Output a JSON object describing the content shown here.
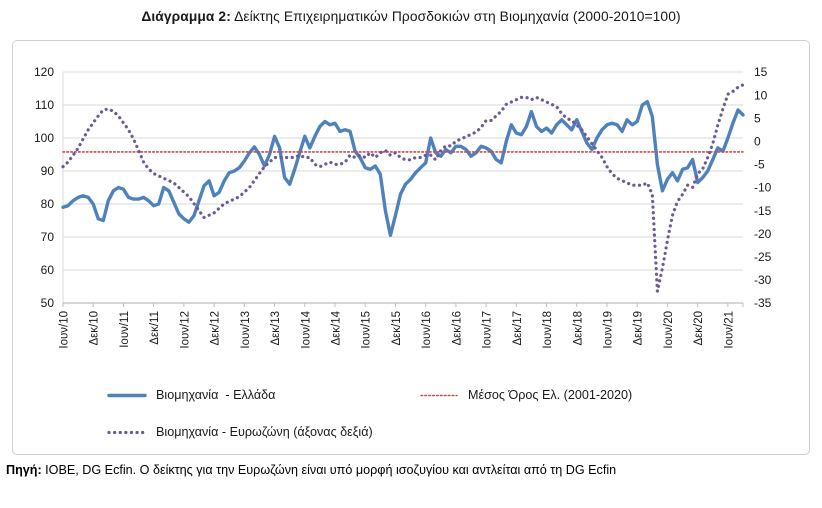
{
  "title": {
    "prefix": "Διάγραμμα 2:",
    "text": " Δείκτης Επιχειρηματικών Προσδοκιών στη Βιομηχανία (2000-2010=100)"
  },
  "source_note": {
    "prefix": "Πηγή:",
    "text": " ΙΟΒΕ, DG Ecfin. Ο δείκτης για την Ευρωζώνη είναι υπό μορφή ισοζυγίου και αντλείται από τη DG Ecfin"
  },
  "chart_data": {
    "type": "line",
    "title": "Δείκτης Επιχειρηματικών Προσδοκιών στη Βιομηχανία (2000-2010=100)",
    "grid": "horizontal",
    "legend_position": "bottom",
    "x_tick_labels": [
      "Ιουν/10",
      "Δεκ/10",
      "Ιουν/11",
      "Δεκ/11",
      "Ιουν/12",
      "Δεκ/12",
      "Ιουν/13",
      "Δεκ/13",
      "Ιουν/14",
      "Δεκ/14",
      "Ιουν/15",
      "Δεκ/15",
      "Ιουν/16",
      "Δεκ/16",
      "Ιουν/17",
      "Δεκ/17",
      "Ιουν/18",
      "Δεκ/18",
      "Ιουν/19",
      "Δεκ/19",
      "Ιουν/20",
      "Δεκ/20",
      "Ιουν/21"
    ],
    "x_tick_every": 6,
    "left_axis": {
      "min": 50,
      "max": 120,
      "step": 10,
      "tick_labels": [
        "120",
        "110",
        "100",
        "90",
        "80",
        "70",
        "60",
        "50"
      ]
    },
    "right_axis": {
      "min": -35,
      "max": 15,
      "step": 5,
      "tick_labels": [
        "15",
        "10",
        "5",
        "0",
        "-5",
        "-10",
        "-15",
        "-20",
        "-25",
        "-30",
        "-35"
      ]
    },
    "series": [
      {
        "name": "Βιομηχανία  - Ελλάδα",
        "axis": "left",
        "style": "solid",
        "color": "#4f81bd",
        "values": [
          79,
          79.5,
          81,
          82,
          82.5,
          82,
          80,
          75.5,
          75,
          81,
          84,
          85,
          84.5,
          82,
          81.5,
          81.5,
          82,
          81,
          79.5,
          80,
          85,
          84,
          80.5,
          77,
          75.5,
          74.5,
          76.5,
          81,
          85.5,
          87,
          82.5,
          83.5,
          87,
          89.5,
          90,
          91,
          93,
          95.5,
          97.3,
          95,
          91.5,
          95,
          100.5,
          97,
          88,
          86,
          90.5,
          95.5,
          100.5,
          97,
          100.5,
          103.5,
          105,
          104,
          104.5,
          102,
          102.5,
          102,
          96,
          94,
          91,
          90.5,
          91.5,
          89,
          78,
          70.5,
          76.5,
          83,
          86,
          87.5,
          89.5,
          91,
          92.5,
          100,
          95.5,
          94.5,
          96.5,
          95.5,
          97.5,
          97.5,
          96.5,
          94.5,
          95.5,
          97.5,
          97,
          96,
          93.5,
          92.5,
          99,
          104,
          101.5,
          101,
          103.5,
          108,
          103.5,
          102,
          103,
          101.5,
          104,
          105.5,
          104,
          102.5,
          105.5,
          102,
          98.5,
          96.5,
          100,
          102.5,
          104,
          104.5,
          104,
          102,
          105.5,
          104,
          105,
          110,
          111,
          106.5,
          92,
          84,
          87.5,
          89.5,
          87,
          90.5,
          91,
          93.5,
          86.5,
          88,
          90,
          93.5,
          97,
          96,
          100,
          104.5,
          108.5,
          107
        ]
      },
      {
        "name": "Μέσος Όρος Ελ. (2001-2020)",
        "axis": "left",
        "style": "dotted-fine",
        "color": "#c0504d",
        "constant": 95.8
      },
      {
        "name": "Βιομηχανία - Ευρωζώνη (άξονας δεξιά)",
        "axis": "right",
        "style": "dotted",
        "color": "#6d5a96",
        "values": [
          -5.5,
          -4.5,
          -3,
          -1.5,
          0.5,
          2.5,
          4,
          5.5,
          6.8,
          7,
          6.5,
          5.5,
          4,
          2.5,
          0.5,
          -2,
          -4.5,
          -6,
          -7,
          -7.5,
          -8,
          -8.5,
          -9,
          -10,
          -11,
          -12,
          -13.5,
          -15,
          -16.5,
          -16,
          -15.5,
          -14.5,
          -13.5,
          -13,
          -12.5,
          -12,
          -11,
          -10,
          -8.5,
          -7,
          -5.5,
          -4.5,
          -3.5,
          -3.5,
          -3.5,
          -3.5,
          -3.5,
          -3,
          -3.5,
          -3.5,
          -5,
          -5.5,
          -5,
          -4.5,
          -5,
          -5,
          -4.5,
          -3,
          -3.5,
          -3,
          -3.5,
          -2.5,
          -3.5,
          -2.5,
          -2,
          -3,
          -2.5,
          -3.5,
          -4,
          -4,
          -3.5,
          -3.5,
          -3,
          -3,
          -4,
          -2,
          -1,
          -1,
          0,
          0.5,
          1,
          1.5,
          2,
          3,
          4.5,
          4.5,
          5.5,
          6.5,
          8,
          8.5,
          9,
          9.5,
          9.5,
          9,
          9.5,
          9,
          8.5,
          8,
          7.5,
          6,
          5,
          4.5,
          3.5,
          2.5,
          1,
          -0.5,
          -2,
          -3.5,
          -5.5,
          -7,
          -8,
          -8.5,
          -9,
          -9.5,
          -9.5,
          -9.5,
          -9,
          -11.5,
          -32.5,
          -27.5,
          -21.5,
          -16,
          -13,
          -11.5,
          -9.5,
          -10,
          -7,
          -6,
          -3.5,
          -0.5,
          3.5,
          7,
          10.2,
          10.8,
          11.7,
          12.2
        ]
      }
    ],
    "colors": {
      "grid": "#d9d9d9",
      "axis": "#bfbfbf",
      "text": "#1a1a1a"
    }
  }
}
